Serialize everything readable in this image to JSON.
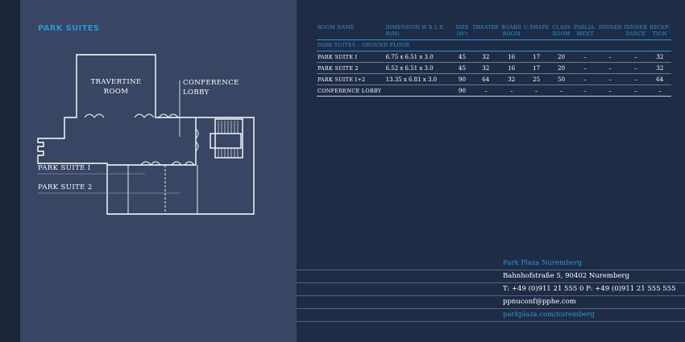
{
  "floorplan": {
    "title": "PARK SUITES",
    "labels": {
      "travertine": "TRAVERTINE ROOM",
      "conference": "CONFERENCE LOBBY",
      "park_suite_1": "PARK SUITE I",
      "park_suite_2": "PARK SUITE 2"
    }
  },
  "table": {
    "headers": {
      "room_name": "ROOM NAME",
      "dimension": "DIMENSION W x L x H(M)",
      "size": "SIZE (M²)",
      "theatre": "THEATRE",
      "board": "BOARD ROOM",
      "ushape": "U-SHAPE",
      "class": "CLASS ROOM",
      "parliament": "PARLIA- MENT",
      "dinner": "DINNER",
      "dinner_dance": "DINNER DANCE",
      "reception": "RECEP- TION"
    },
    "section_title": "PARK SUITES – GROUND FLOOR",
    "rows": [
      [
        "PARK SUITE I",
        "6.75 x 6.51 x 3.0",
        "45",
        "32",
        "16",
        "17",
        "20",
        "–",
        "–",
        "–",
        "32"
      ],
      [
        "PARK SUITE 2",
        "6.52 x 6.51 x 3.0",
        "45",
        "32",
        "16",
        "17",
        "20",
        "–",
        "–",
        "–",
        "32"
      ],
      [
        "PARK SUITE I+2",
        "13.35 x 6.81 x 3.0",
        "90",
        "64",
        "32",
        "25",
        "50",
        "–",
        "–",
        "–",
        "64"
      ],
      [
        "CONFERENCE LOBBY",
        "",
        "90",
        "–",
        "–",
        "–",
        "–",
        "–",
        "–",
        "–",
        "–"
      ]
    ]
  },
  "contact": {
    "hotel": "Park Plaza Nuremberg",
    "address": "Bahnhofstraße 5, 90402 Nuremberg",
    "phone": "T: +49 (0)911 21 555 0    F: +49 (0)911 21 555 555",
    "email": "ppnuconf@pphe.com",
    "web": "parkplaza.com/nuremberg"
  },
  "colors": {
    "accent": "#2d94d4",
    "left_panel": "#384663",
    "right_panel": "#1f2c45",
    "spine": "#1a2539"
  }
}
